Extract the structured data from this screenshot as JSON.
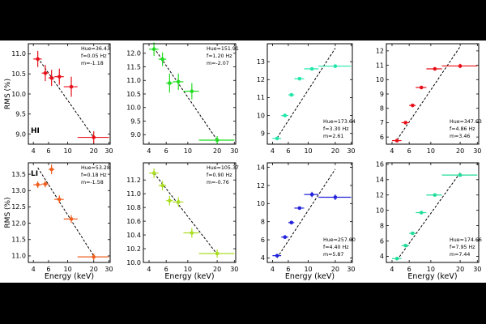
{
  "axes": {
    "ylabel": "RMS (%)",
    "xlabel": "Energy (keV)",
    "xlim": [
      3.5,
      31
    ],
    "x_scale": "log",
    "x_ticks": [
      4,
      6,
      10,
      20,
      30
    ]
  },
  "chart_data": [
    {
      "type": "scatter",
      "row": 0,
      "col": 0,
      "tag": "HI",
      "color": "#e8101a",
      "annotation": [
        "Hue=36.43",
        "f=0.05 Hz",
        "m=-1.18"
      ],
      "ylim": [
        8.75,
        11.25
      ],
      "yticks": [
        9.0,
        9.5,
        10.0,
        10.5,
        11.0
      ],
      "ytick_labels": [
        "9.0",
        "9.5",
        "10.0",
        "10.5",
        "11.0"
      ],
      "points": [
        {
          "x": 4.5,
          "xlo": 4.0,
          "xhi": 5.0,
          "y": 10.87,
          "yerr": 0.2
        },
        {
          "x": 5.5,
          "xlo": 5.0,
          "xhi": 6.0,
          "y": 10.52,
          "yerr": 0.2
        },
        {
          "x": 6.5,
          "xlo": 6.0,
          "xhi": 7.0,
          "y": 10.4,
          "yerr": 0.2
        },
        {
          "x": 8.0,
          "xlo": 7.0,
          "xhi": 9.0,
          "y": 10.43,
          "yerr": 0.2
        },
        {
          "x": 11.0,
          "xlo": 9.0,
          "xhi": 13.0,
          "y": 10.18,
          "yerr": 0.25
        },
        {
          "x": 20.0,
          "xlo": 13.0,
          "xhi": 30.0,
          "y": 8.92,
          "yerr": 0.15
        }
      ],
      "fit": [
        [
          4.5,
          10.9
        ],
        [
          20.0,
          8.92
        ]
      ]
    },
    {
      "type": "scatter",
      "row": 0,
      "col": 1,
      "tag": "",
      "color": "#22dd22",
      "annotation": [
        "Hue=151.91",
        "f=1.20 Hz",
        "m=-2.07"
      ],
      "ylim": [
        8.65,
        12.35
      ],
      "yticks": [
        9.0,
        9.5,
        10.0,
        10.5,
        11.0,
        11.5,
        12.0
      ],
      "ytick_labels": [
        "9.0",
        "9.5",
        "10.0",
        "10.5",
        "11.0",
        "11.5",
        "12.0"
      ],
      "points": [
        {
          "x": 4.5,
          "xlo": 4.0,
          "xhi": 5.0,
          "y": 12.15,
          "yerr": 0.25
        },
        {
          "x": 5.5,
          "xlo": 5.0,
          "xhi": 6.0,
          "y": 11.78,
          "yerr": 0.25
        },
        {
          "x": 6.5,
          "xlo": 6.0,
          "xhi": 7.0,
          "y": 10.9,
          "yerr": 0.35
        },
        {
          "x": 8.0,
          "xlo": 7.0,
          "xhi": 9.0,
          "y": 10.95,
          "yerr": 0.3
        },
        {
          "x": 11.0,
          "xlo": 9.0,
          "xhi": 13.0,
          "y": 10.6,
          "yerr": 0.3
        },
        {
          "x": 20.0,
          "xlo": 13.0,
          "xhi": 30.0,
          "y": 8.8,
          "yerr": 0.15
        }
      ],
      "fit": [
        [
          4.5,
          12.2
        ],
        [
          20.0,
          8.8
        ]
      ]
    },
    {
      "type": "scatter",
      "row": 0,
      "col": 2,
      "tag": "",
      "color": "#22e6aa",
      "annotation": [
        "Hue=173.64",
        "f=3.30 Hz",
        "m=2.61"
      ],
      "ylim": [
        8.4,
        14.0
      ],
      "yticks": [
        9,
        10,
        11,
        12,
        13
      ],
      "ytick_labels": [
        "9",
        "10",
        "11",
        "12",
        "13"
      ],
      "points": [
        {
          "x": 4.5,
          "xlo": 4.0,
          "xhi": 5.0,
          "y": 8.72,
          "yerr": 0.05
        },
        {
          "x": 5.5,
          "xlo": 5.0,
          "xhi": 6.0,
          "y": 10.0,
          "yerr": 0.05
        },
        {
          "x": 6.5,
          "xlo": 6.0,
          "xhi": 7.0,
          "y": 11.15,
          "yerr": 0.05
        },
        {
          "x": 8.0,
          "xlo": 7.0,
          "xhi": 9.0,
          "y": 12.05,
          "yerr": 0.05
        },
        {
          "x": 11.0,
          "xlo": 9.0,
          "xhi": 13.0,
          "y": 12.6,
          "yerr": 0.05
        },
        {
          "x": 20.0,
          "xlo": 13.0,
          "xhi": 30.0,
          "y": 12.75,
          "yerr": 0.1
        }
      ],
      "fit": [
        [
          4.5,
          8.75
        ],
        [
          20.0,
          13.75
        ]
      ]
    },
    {
      "type": "scatter",
      "row": 0,
      "col": 3,
      "tag": "",
      "color": "#e8101a",
      "annotation": [
        "Hue=347.63",
        "f=4.86 Hz",
        "m=3.46"
      ],
      "ylim": [
        5.5,
        12.5
      ],
      "yticks": [
        6,
        7,
        8,
        9,
        10,
        11,
        12
      ],
      "ytick_labels": [
        "6",
        "7",
        "8",
        "9",
        "10",
        "11",
        "12"
      ],
      "points": [
        {
          "x": 4.5,
          "xlo": 4.0,
          "xhi": 5.0,
          "y": 5.75,
          "yerr": 0.05
        },
        {
          "x": 5.5,
          "xlo": 5.0,
          "xhi": 6.0,
          "y": 7.0,
          "yerr": 0.1
        },
        {
          "x": 6.5,
          "xlo": 6.0,
          "xhi": 7.0,
          "y": 8.2,
          "yerr": 0.1
        },
        {
          "x": 8.0,
          "xlo": 7.0,
          "xhi": 9.0,
          "y": 9.45,
          "yerr": 0.1
        },
        {
          "x": 11.0,
          "xlo": 9.0,
          "xhi": 13.0,
          "y": 10.75,
          "yerr": 0.1
        },
        {
          "x": 20.0,
          "xlo": 13.0,
          "xhi": 30.0,
          "y": 10.95,
          "yerr": 0.15
        }
      ],
      "fit": [
        [
          4.5,
          5.8
        ],
        [
          20.0,
          12.3
        ]
      ]
    },
    {
      "type": "scatter",
      "row": 1,
      "col": 0,
      "tag": "LI",
      "color": "#f06020",
      "annotation": [
        "Hue=53.28",
        "f=0.18 Hz",
        "m=-1.58"
      ],
      "ylim": [
        10.8,
        13.85
      ],
      "yticks": [
        11.0,
        11.5,
        12.0,
        12.5,
        13.0,
        13.5
      ],
      "ytick_labels": [
        "11.0",
        "11.5",
        "12.0",
        "12.5",
        "13.0",
        "13.5"
      ],
      "points": [
        {
          "x": 4.5,
          "xlo": 4.0,
          "xhi": 5.0,
          "y": 13.18,
          "yerr": 0.1
        },
        {
          "x": 5.5,
          "xlo": 5.0,
          "xhi": 6.0,
          "y": 13.2,
          "yerr": 0.1
        },
        {
          "x": 6.5,
          "xlo": 6.0,
          "xhi": 7.0,
          "y": 13.65,
          "yerr": 0.15
        },
        {
          "x": 8.0,
          "xlo": 7.0,
          "xhi": 9.0,
          "y": 12.73,
          "yerr": 0.12
        },
        {
          "x": 11.0,
          "xlo": 9.0,
          "xhi": 13.0,
          "y": 12.13,
          "yerr": 0.12
        },
        {
          "x": 20.0,
          "xlo": 13.0,
          "xhi": 30.0,
          "y": 10.97,
          "yerr": 0.1
        }
      ],
      "fit": [
        [
          4.5,
          13.7
        ],
        [
          20.0,
          11.0
        ]
      ]
    },
    {
      "type": "scatter",
      "row": 1,
      "col": 1,
      "tag": "",
      "color": "#aadd22",
      "annotation": [
        "Hue=105.37",
        "f=0.90 Hz",
        "m=-0.76"
      ],
      "ylim": [
        10.0,
        11.45
      ],
      "yticks": [
        10.0,
        10.2,
        10.4,
        10.6,
        10.8,
        11.0,
        11.2
      ],
      "ytick_labels": [
        "10.0",
        "10.2",
        "10.4",
        "10.6",
        "10.8",
        "11.0",
        "11.2"
      ],
      "points": [
        {
          "x": 4.5,
          "xlo": 4.0,
          "xhi": 5.0,
          "y": 11.3,
          "yerr": 0.07
        },
        {
          "x": 5.5,
          "xlo": 5.0,
          "xhi": 6.0,
          "y": 11.12,
          "yerr": 0.07
        },
        {
          "x": 6.5,
          "xlo": 6.0,
          "xhi": 7.0,
          "y": 10.9,
          "yerr": 0.07
        },
        {
          "x": 8.0,
          "xlo": 7.0,
          "xhi": 9.0,
          "y": 10.88,
          "yerr": 0.07
        },
        {
          "x": 11.0,
          "xlo": 9.0,
          "xhi": 13.0,
          "y": 10.43,
          "yerr": 0.07
        },
        {
          "x": 20.0,
          "xlo": 13.0,
          "xhi": 30.0,
          "y": 10.13,
          "yerr": 0.06
        }
      ],
      "fit": [
        [
          4.5,
          11.3
        ],
        [
          20.0,
          10.12
        ]
      ]
    },
    {
      "type": "scatter",
      "row": 1,
      "col": 2,
      "tag": "",
      "color": "#2222dd",
      "annotation": [
        "Hue=257.00",
        "f=4.40 Hz",
        "m=5.87"
      ],
      "ylim": [
        3.5,
        14.5
      ],
      "yticks": [
        4,
        6,
        8,
        10,
        12,
        14
      ],
      "ytick_labels": [
        "4",
        "6",
        "8",
        "10",
        "12",
        "14"
      ],
      "points": [
        {
          "x": 4.5,
          "xlo": 4.0,
          "xhi": 5.0,
          "y": 4.25,
          "yerr": 0.1
        },
        {
          "x": 5.5,
          "xlo": 5.0,
          "xhi": 6.0,
          "y": 6.3,
          "yerr": 0.15
        },
        {
          "x": 6.5,
          "xlo": 6.0,
          "xhi": 7.0,
          "y": 7.9,
          "yerr": 0.15
        },
        {
          "x": 8.0,
          "xlo": 7.0,
          "xhi": 9.0,
          "y": 9.5,
          "yerr": 0.15
        },
        {
          "x": 11.0,
          "xlo": 9.0,
          "xhi": 13.0,
          "y": 11.0,
          "yerr": 0.3
        },
        {
          "x": 20.0,
          "xlo": 13.0,
          "xhi": 30.0,
          "y": 10.7,
          "yerr": 0.3
        }
      ],
      "fit": [
        [
          4.5,
          4.0
        ],
        [
          20.0,
          13.8
        ]
      ]
    },
    {
      "type": "scatter",
      "row": 1,
      "col": 3,
      "tag": "",
      "color": "#22dd99",
      "annotation": [
        "Hue=174.66",
        "f=7.95 Hz",
        "m=7.44"
      ],
      "ylim": [
        3.2,
        16.2
      ],
      "yticks": [
        4,
        6,
        8,
        10,
        12,
        14,
        16
      ],
      "ytick_labels": [
        "4",
        "6",
        "8",
        "10",
        "12",
        "14",
        "16"
      ],
      "points": [
        {
          "x": 4.5,
          "xlo": 4.0,
          "xhi": 5.0,
          "y": 3.7,
          "yerr": 0.1
        },
        {
          "x": 5.5,
          "xlo": 5.0,
          "xhi": 6.0,
          "y": 5.4,
          "yerr": 0.1
        },
        {
          "x": 6.5,
          "xlo": 6.0,
          "xhi": 7.0,
          "y": 7.0,
          "yerr": 0.1
        },
        {
          "x": 8.0,
          "xlo": 7.0,
          "xhi": 9.0,
          "y": 9.7,
          "yerr": 0.2
        },
        {
          "x": 11.0,
          "xlo": 9.0,
          "xhi": 13.0,
          "y": 12.0,
          "yerr": 0.2
        },
        {
          "x": 20.0,
          "xlo": 13.0,
          "xhi": 30.0,
          "y": 14.6,
          "yerr": 0.2
        }
      ],
      "fit": [
        [
          4.5,
          3.5
        ],
        [
          20.0,
          14.9
        ]
      ]
    }
  ]
}
